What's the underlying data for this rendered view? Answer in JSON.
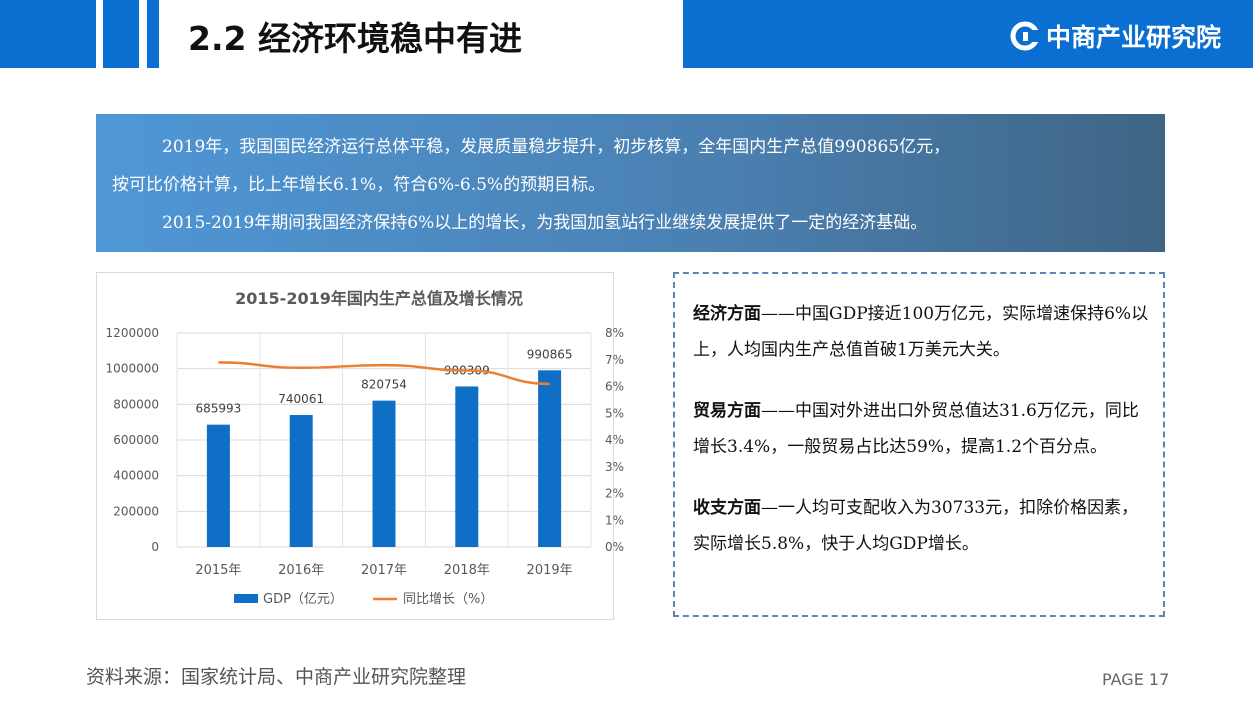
{
  "header": {
    "title": "2.2 经济环境稳中有进",
    "logo_text": "中商产业研究院",
    "accent_color": "#0a6fd1"
  },
  "summary": {
    "line1": "2019年，我国国民经济运行总体平稳，发展质量稳步提升，初步核算，全年国内生产总值990865亿元，",
    "line2": "按可比价格计算，比上年增长6.1%，符合6%-6.5%的预期目标。",
    "line3": "2015-2019年期间我国经济保持6%以上的增长，为我国加氢站行业继续发展提供了一定的经济基础。"
  },
  "chart_data": {
    "type": "bar",
    "title": "2015-2019年国内生产总值及增长情况",
    "categories": [
      "2015年",
      "2016年",
      "2017年",
      "2018年",
      "2019年"
    ],
    "series": [
      {
        "name": "GDP（亿元）",
        "type": "bar",
        "axis": "left",
        "color": "#0f6fc6",
        "values": [
          685993,
          740061,
          820754,
          900309,
          990865
        ]
      },
      {
        "name": "同比增长（%）",
        "type": "line",
        "axis": "right",
        "color": "#ed7d31",
        "values": [
          6.9,
          6.7,
          6.8,
          6.6,
          6.1
        ]
      }
    ],
    "ylim": [
      0,
      1200000
    ],
    "yticks": [
      "0",
      "200000",
      "400000",
      "600000",
      "800000",
      "1000000",
      "1200000"
    ],
    "y2lim": [
      0,
      8
    ],
    "y2ticks": [
      "0%",
      "1%",
      "2%",
      "3%",
      "4%",
      "5%",
      "6%",
      "7%",
      "8%"
    ],
    "data_labels": [
      "685993",
      "740061",
      "820754",
      "900309",
      "990865"
    ],
    "grid": true,
    "legend": "bottom"
  },
  "info": {
    "p1_head": "经济方面",
    "p1_body": "——中国GDP接近100万亿元，实际增速保持6%以上，人均国内生产总值首破1万美元大关。",
    "p2_head": "贸易方面",
    "p2_body": "——中国对外进出口外贸总值达31.6万亿元，同比增长3.4%，一般贸易占比达59%，提高1.2个百分点。",
    "p3_head": "收支方面",
    "p3_body": "—一人均可支配收入为30733元，扣除价格因素，实际增长5.8%，快于人均GDP增长。"
  },
  "footer": {
    "source": "资料来源：国家统计局、中商产业研究院整理",
    "page": "PAGE 17"
  }
}
